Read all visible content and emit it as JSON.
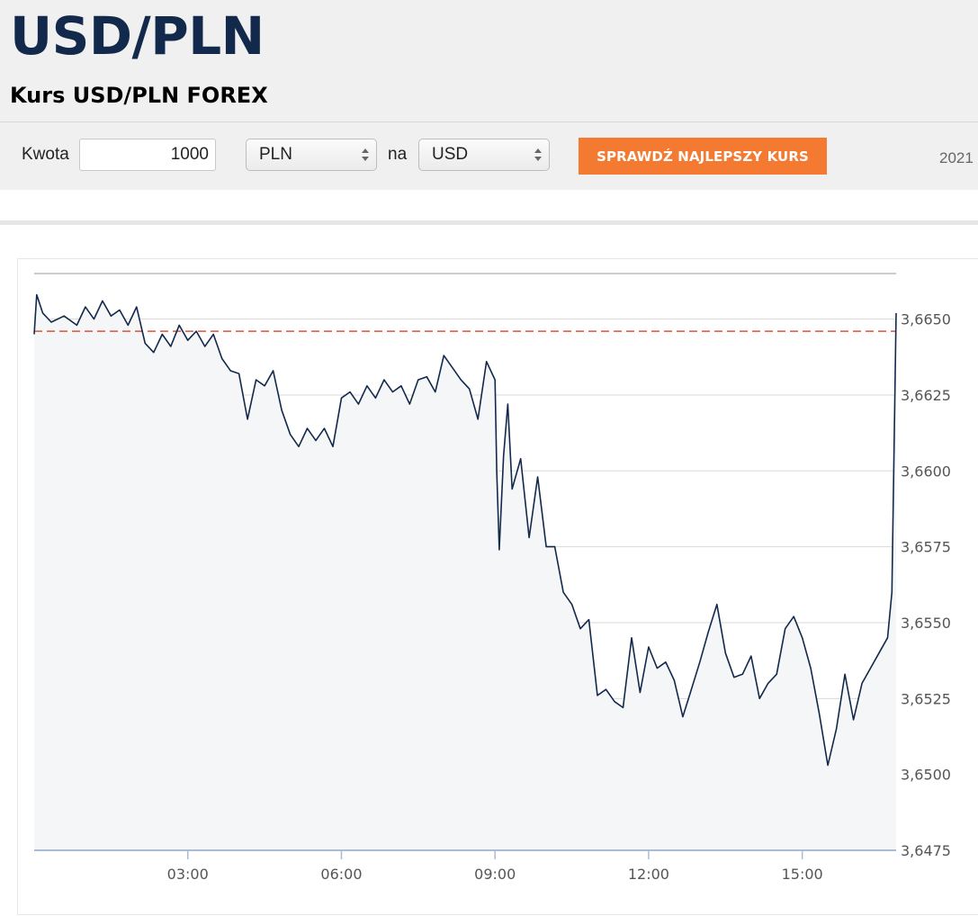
{
  "header": {
    "pair": "USD/PLN",
    "subtitle": "Kurs USD/PLN FOREX"
  },
  "converter": {
    "amount_label": "Kwota",
    "amount_value": "1000",
    "from_currency": "PLN",
    "between_label": "na",
    "to_currency": "USD",
    "button_label": "SPRAWDŹ NAJLEPSZY KURS",
    "date_text": "2021"
  },
  "colors": {
    "line": "#13294b",
    "reference_line": "#e0523a",
    "plot_background": "#f5f6f8",
    "button": "#f47a31",
    "title": "#13294b"
  },
  "chart_data": {
    "type": "line",
    "title": "",
    "xlabel": "",
    "ylabel": "",
    "x_unit": "time of day",
    "x_range": [
      "00:00",
      "16:50"
    ],
    "ylim": [
      3.6475,
      3.6665
    ],
    "y_ticks": [
      3.6475,
      3.65,
      3.6525,
      3.655,
      3.6575,
      3.66,
      3.6625,
      3.665
    ],
    "y_tick_labels": [
      "3,6475",
      "3,6500",
      "3,6525",
      "3,6550",
      "3,6575",
      "3,6600",
      "3,6625",
      "3,6650"
    ],
    "x_ticks": [
      "03:00",
      "06:00",
      "09:00",
      "12:00",
      "15:00"
    ],
    "grid": "horizontal",
    "reference_line": {
      "value": 3.6646,
      "style": "dashed"
    },
    "series": [
      {
        "x": [
          "00:00",
          "00:03",
          "00:10",
          "00:20",
          "00:35",
          "00:50",
          "01:00",
          "01:10",
          "01:20",
          "01:30",
          "01:40",
          "01:50",
          "02:00",
          "02:10",
          "02:20",
          "02:30",
          "02:40",
          "02:50",
          "03:00",
          "03:10",
          "03:20",
          "03:30",
          "03:40",
          "03:50",
          "04:00",
          "04:10",
          "04:20",
          "04:30",
          "04:40",
          "04:50",
          "05:00",
          "05:10",
          "05:20",
          "05:30",
          "05:40",
          "05:50",
          "06:00",
          "06:10",
          "06:20",
          "06:30",
          "06:40",
          "06:50",
          "07:00",
          "07:10",
          "07:20",
          "07:30",
          "07:40",
          "07:50",
          "08:00",
          "08:10",
          "08:20",
          "08:30",
          "08:40",
          "08:50",
          "09:00",
          "09:02",
          "09:05",
          "09:10",
          "09:15",
          "09:20",
          "09:30",
          "09:40",
          "09:50",
          "10:00",
          "10:10",
          "10:20",
          "10:30",
          "10:40",
          "10:50",
          "11:00",
          "11:10",
          "11:20",
          "11:30",
          "11:40",
          "11:50",
          "12:00",
          "12:10",
          "12:20",
          "12:30",
          "12:40",
          "12:50",
          "13:00",
          "13:10",
          "13:20",
          "13:30",
          "13:40",
          "13:50",
          "14:00",
          "14:10",
          "14:20",
          "14:30",
          "14:40",
          "14:50",
          "15:00",
          "15:10",
          "15:20",
          "15:30",
          "15:40",
          "15:50",
          "16:00",
          "16:10",
          "16:20",
          "16:30",
          "16:40",
          "16:45",
          "16:50"
        ],
        "y": [
          3.6645,
          3.6658,
          3.6652,
          3.6649,
          3.6651,
          3.6648,
          3.6654,
          3.665,
          3.6656,
          3.6651,
          3.6653,
          3.6648,
          3.6654,
          3.6642,
          3.6639,
          3.6645,
          3.6641,
          3.6648,
          3.6643,
          3.6646,
          3.6641,
          3.6645,
          3.6637,
          3.6633,
          3.6632,
          3.6617,
          3.663,
          3.6628,
          3.6633,
          3.662,
          3.6612,
          3.6608,
          3.6614,
          3.661,
          3.6614,
          3.6608,
          3.6624,
          3.6626,
          3.6622,
          3.6628,
          3.6624,
          3.663,
          3.6626,
          3.6628,
          3.6622,
          3.663,
          3.6631,
          3.6626,
          3.6638,
          3.6634,
          3.663,
          3.6627,
          3.6617,
          3.6636,
          3.663,
          3.66,
          3.6574,
          3.6605,
          3.6622,
          3.6594,
          3.6604,
          3.6578,
          3.6598,
          3.6575,
          3.6575,
          3.656,
          3.6556,
          3.6548,
          3.6551,
          3.6526,
          3.6528,
          3.6524,
          3.6522,
          3.6545,
          3.6527,
          3.6542,
          3.6535,
          3.6537,
          3.6531,
          3.6519,
          3.6528,
          3.6537,
          3.6547,
          3.6556,
          3.654,
          3.6532,
          3.6533,
          3.6539,
          3.6525,
          3.653,
          3.6533,
          3.6548,
          3.6552,
          3.6545,
          3.6535,
          3.652,
          3.6503,
          3.6515,
          3.6533,
          3.6518,
          3.653,
          3.6535,
          3.654,
          3.6545,
          3.656,
          3.6652
        ]
      }
    ]
  }
}
